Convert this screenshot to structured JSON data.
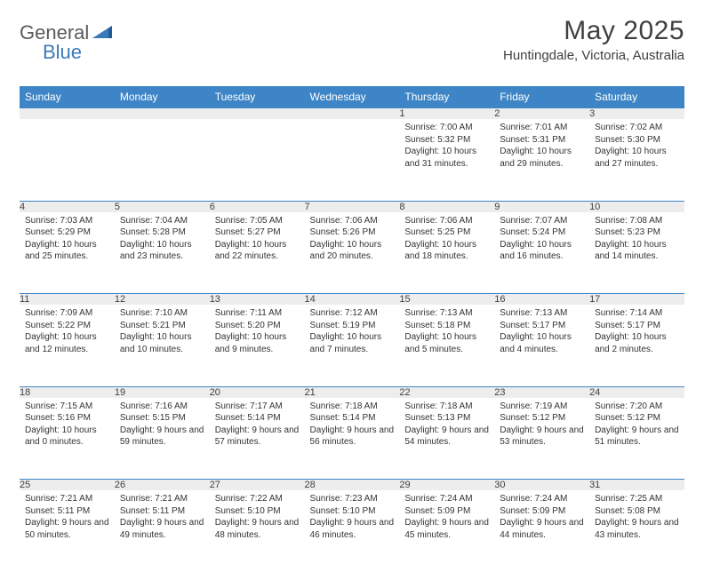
{
  "logo": {
    "part1": "General",
    "part2": "Blue"
  },
  "title": "May 2025",
  "location": "Huntingdale, Victoria, Australia",
  "colors": {
    "header_bg": "#3d85c6",
    "header_fg": "#ffffff",
    "daynum_bg": "#ededed",
    "border": "#3d85c6",
    "text": "#333333",
    "logo_gray": "#5a5a5a",
    "logo_blue": "#3a7ab8"
  },
  "weekdays": [
    "Sunday",
    "Monday",
    "Tuesday",
    "Wednesday",
    "Thursday",
    "Friday",
    "Saturday"
  ],
  "weeks": [
    [
      null,
      null,
      null,
      null,
      {
        "n": "1",
        "sr": "Sunrise: 7:00 AM",
        "ss": "Sunset: 5:32 PM",
        "dl": "Daylight: 10 hours and 31 minutes."
      },
      {
        "n": "2",
        "sr": "Sunrise: 7:01 AM",
        "ss": "Sunset: 5:31 PM",
        "dl": "Daylight: 10 hours and 29 minutes."
      },
      {
        "n": "3",
        "sr": "Sunrise: 7:02 AM",
        "ss": "Sunset: 5:30 PM",
        "dl": "Daylight: 10 hours and 27 minutes."
      }
    ],
    [
      {
        "n": "4",
        "sr": "Sunrise: 7:03 AM",
        "ss": "Sunset: 5:29 PM",
        "dl": "Daylight: 10 hours and 25 minutes."
      },
      {
        "n": "5",
        "sr": "Sunrise: 7:04 AM",
        "ss": "Sunset: 5:28 PM",
        "dl": "Daylight: 10 hours and 23 minutes."
      },
      {
        "n": "6",
        "sr": "Sunrise: 7:05 AM",
        "ss": "Sunset: 5:27 PM",
        "dl": "Daylight: 10 hours and 22 minutes."
      },
      {
        "n": "7",
        "sr": "Sunrise: 7:06 AM",
        "ss": "Sunset: 5:26 PM",
        "dl": "Daylight: 10 hours and 20 minutes."
      },
      {
        "n": "8",
        "sr": "Sunrise: 7:06 AM",
        "ss": "Sunset: 5:25 PM",
        "dl": "Daylight: 10 hours and 18 minutes."
      },
      {
        "n": "9",
        "sr": "Sunrise: 7:07 AM",
        "ss": "Sunset: 5:24 PM",
        "dl": "Daylight: 10 hours and 16 minutes."
      },
      {
        "n": "10",
        "sr": "Sunrise: 7:08 AM",
        "ss": "Sunset: 5:23 PM",
        "dl": "Daylight: 10 hours and 14 minutes."
      }
    ],
    [
      {
        "n": "11",
        "sr": "Sunrise: 7:09 AM",
        "ss": "Sunset: 5:22 PM",
        "dl": "Daylight: 10 hours and 12 minutes."
      },
      {
        "n": "12",
        "sr": "Sunrise: 7:10 AM",
        "ss": "Sunset: 5:21 PM",
        "dl": "Daylight: 10 hours and 10 minutes."
      },
      {
        "n": "13",
        "sr": "Sunrise: 7:11 AM",
        "ss": "Sunset: 5:20 PM",
        "dl": "Daylight: 10 hours and 9 minutes."
      },
      {
        "n": "14",
        "sr": "Sunrise: 7:12 AM",
        "ss": "Sunset: 5:19 PM",
        "dl": "Daylight: 10 hours and 7 minutes."
      },
      {
        "n": "15",
        "sr": "Sunrise: 7:13 AM",
        "ss": "Sunset: 5:18 PM",
        "dl": "Daylight: 10 hours and 5 minutes."
      },
      {
        "n": "16",
        "sr": "Sunrise: 7:13 AM",
        "ss": "Sunset: 5:17 PM",
        "dl": "Daylight: 10 hours and 4 minutes."
      },
      {
        "n": "17",
        "sr": "Sunrise: 7:14 AM",
        "ss": "Sunset: 5:17 PM",
        "dl": "Daylight: 10 hours and 2 minutes."
      }
    ],
    [
      {
        "n": "18",
        "sr": "Sunrise: 7:15 AM",
        "ss": "Sunset: 5:16 PM",
        "dl": "Daylight: 10 hours and 0 minutes."
      },
      {
        "n": "19",
        "sr": "Sunrise: 7:16 AM",
        "ss": "Sunset: 5:15 PM",
        "dl": "Daylight: 9 hours and 59 minutes."
      },
      {
        "n": "20",
        "sr": "Sunrise: 7:17 AM",
        "ss": "Sunset: 5:14 PM",
        "dl": "Daylight: 9 hours and 57 minutes."
      },
      {
        "n": "21",
        "sr": "Sunrise: 7:18 AM",
        "ss": "Sunset: 5:14 PM",
        "dl": "Daylight: 9 hours and 56 minutes."
      },
      {
        "n": "22",
        "sr": "Sunrise: 7:18 AM",
        "ss": "Sunset: 5:13 PM",
        "dl": "Daylight: 9 hours and 54 minutes."
      },
      {
        "n": "23",
        "sr": "Sunrise: 7:19 AM",
        "ss": "Sunset: 5:12 PM",
        "dl": "Daylight: 9 hours and 53 minutes."
      },
      {
        "n": "24",
        "sr": "Sunrise: 7:20 AM",
        "ss": "Sunset: 5:12 PM",
        "dl": "Daylight: 9 hours and 51 minutes."
      }
    ],
    [
      {
        "n": "25",
        "sr": "Sunrise: 7:21 AM",
        "ss": "Sunset: 5:11 PM",
        "dl": "Daylight: 9 hours and 50 minutes."
      },
      {
        "n": "26",
        "sr": "Sunrise: 7:21 AM",
        "ss": "Sunset: 5:11 PM",
        "dl": "Daylight: 9 hours and 49 minutes."
      },
      {
        "n": "27",
        "sr": "Sunrise: 7:22 AM",
        "ss": "Sunset: 5:10 PM",
        "dl": "Daylight: 9 hours and 48 minutes."
      },
      {
        "n": "28",
        "sr": "Sunrise: 7:23 AM",
        "ss": "Sunset: 5:10 PM",
        "dl": "Daylight: 9 hours and 46 minutes."
      },
      {
        "n": "29",
        "sr": "Sunrise: 7:24 AM",
        "ss": "Sunset: 5:09 PM",
        "dl": "Daylight: 9 hours and 45 minutes."
      },
      {
        "n": "30",
        "sr": "Sunrise: 7:24 AM",
        "ss": "Sunset: 5:09 PM",
        "dl": "Daylight: 9 hours and 44 minutes."
      },
      {
        "n": "31",
        "sr": "Sunrise: 7:25 AM",
        "ss": "Sunset: 5:08 PM",
        "dl": "Daylight: 9 hours and 43 minutes."
      }
    ]
  ]
}
